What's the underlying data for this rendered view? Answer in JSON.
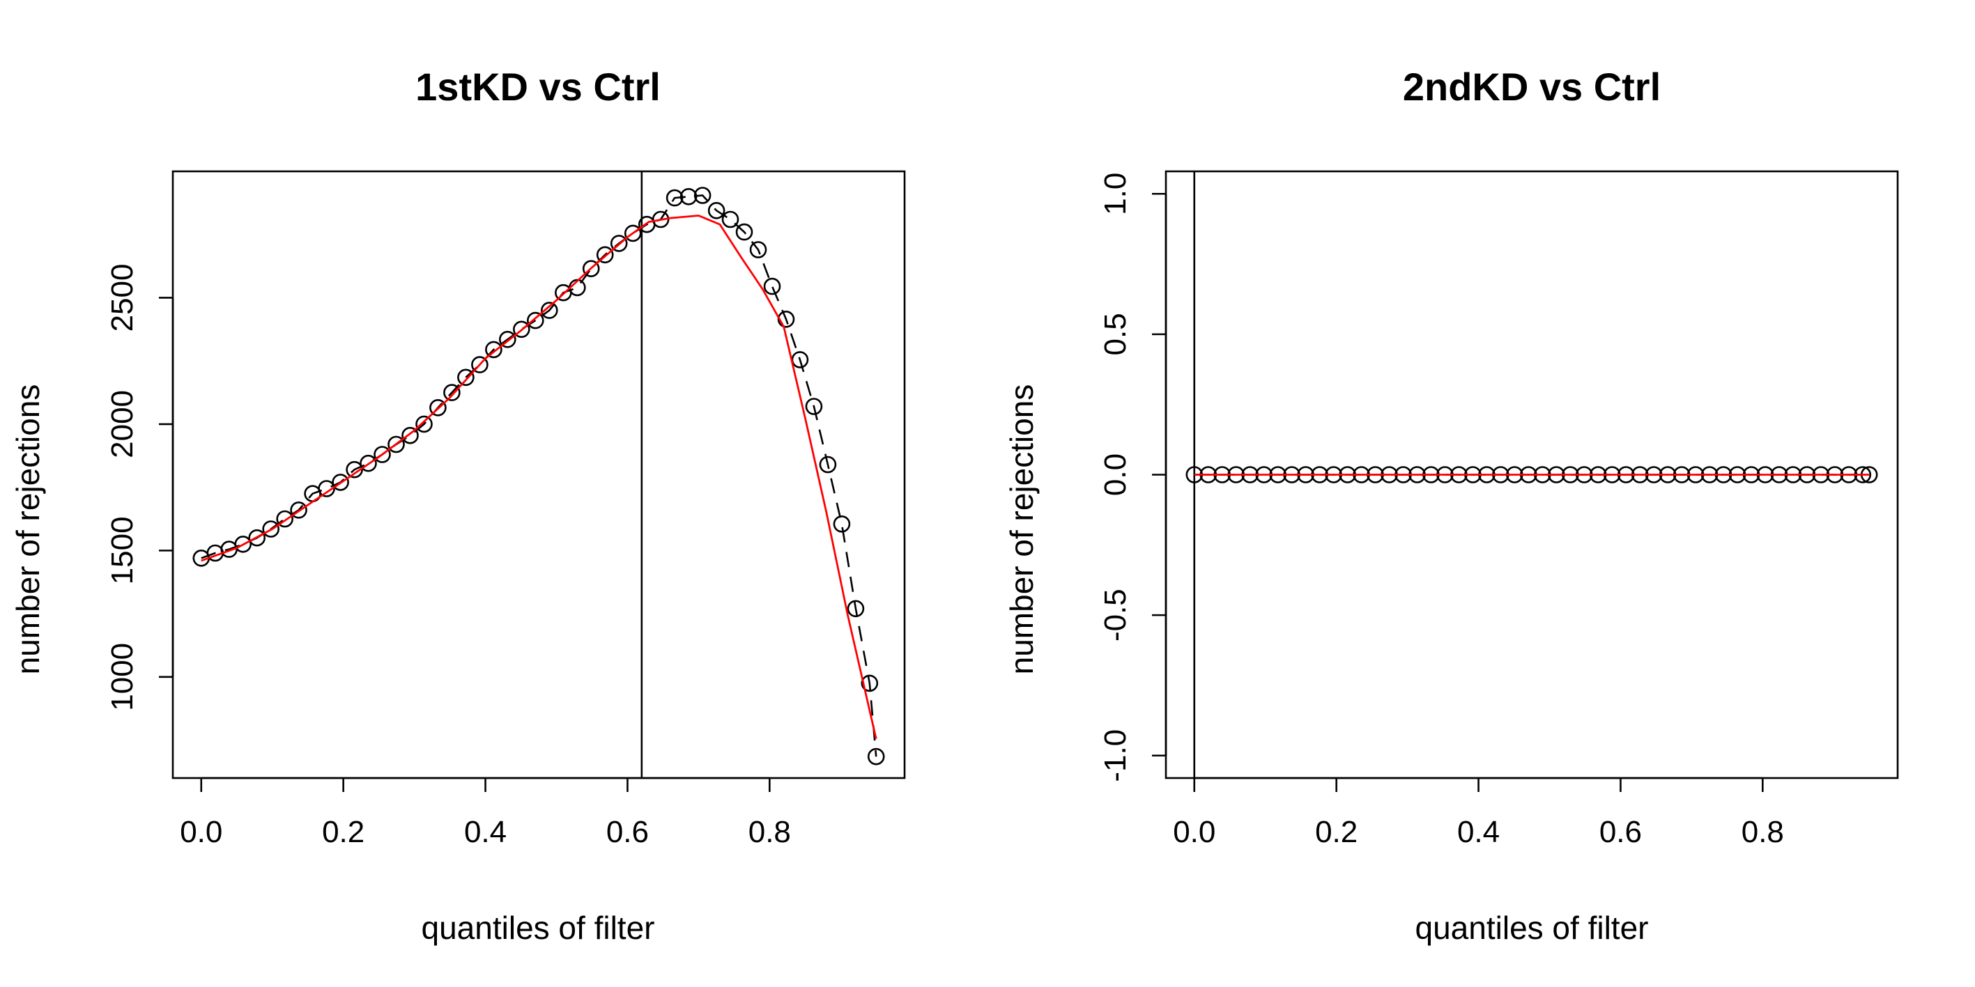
{
  "chart_data": [
    {
      "type": "scatter",
      "title": "1stKD vs Ctrl",
      "xlabel": "quantiles of filter",
      "ylabel": "number of rejections",
      "xlim": [
        -0.04,
        0.99
      ],
      "ylim": [
        600,
        3000
      ],
      "xticks": [
        0.0,
        0.2,
        0.4,
        0.6,
        0.8
      ],
      "xtick_labels": [
        "0.0",
        "0.2",
        "0.4",
        "0.6",
        "0.8"
      ],
      "yticks": [
        1000,
        1500,
        2000,
        2500
      ],
      "ytick_labels": [
        "1000",
        "1500",
        "2000",
        "2500"
      ],
      "vline": 0.62,
      "colors": {
        "points": "#000000",
        "dashed": "#000000",
        "fit": "#ff0000"
      },
      "series": [
        {
          "style": "points-dashed",
          "x": [
            0.0,
            0.0196,
            0.0392,
            0.0588,
            0.0784,
            0.098,
            0.1176,
            0.1372,
            0.1568,
            0.1764,
            0.196,
            0.2156,
            0.2352,
            0.2548,
            0.2744,
            0.294,
            0.3136,
            0.3332,
            0.3528,
            0.3724,
            0.392,
            0.4116,
            0.4312,
            0.4508,
            0.4704,
            0.49,
            0.5096,
            0.5292,
            0.5488,
            0.5684,
            0.588,
            0.6076,
            0.6272,
            0.6468,
            0.6664,
            0.686,
            0.7056,
            0.7252,
            0.7448,
            0.7644,
            0.784,
            0.8036,
            0.8232,
            0.8428,
            0.8624,
            0.882,
            0.9016,
            0.9212,
            0.9408,
            0.95
          ],
          "values": [
            1470,
            1490,
            1505,
            1525,
            1550,
            1585,
            1625,
            1660,
            1725,
            1745,
            1770,
            1820,
            1845,
            1880,
            1920,
            1955,
            2000,
            2065,
            2125,
            2185,
            2235,
            2295,
            2335,
            2375,
            2410,
            2450,
            2520,
            2540,
            2615,
            2670,
            2715,
            2755,
            2790,
            2810,
            2895,
            2900,
            2905,
            2845,
            2810,
            2760,
            2690,
            2545,
            2415,
            2255,
            2070,
            1840,
            1605,
            1270,
            975,
            685
          ]
        },
        {
          "style": "fit-line",
          "x": [
            0.0,
            0.05,
            0.1,
            0.15,
            0.2,
            0.25,
            0.3,
            0.35,
            0.4,
            0.45,
            0.5,
            0.55,
            0.6,
            0.63,
            0.66,
            0.7,
            0.73,
            0.76,
            0.79,
            0.82,
            0.85,
            0.88,
            0.91,
            0.95
          ],
          "values": [
            1460,
            1510,
            1585,
            1680,
            1775,
            1870,
            1975,
            2105,
            2260,
            2370,
            2490,
            2620,
            2740,
            2800,
            2815,
            2825,
            2790,
            2660,
            2535,
            2385,
            2025,
            1650,
            1245,
            755
          ]
        }
      ]
    },
    {
      "type": "scatter",
      "title": "2ndKD vs Ctrl",
      "xlabel": "quantiles of filter",
      "ylabel": "number of rejections",
      "xlim": [
        -0.04,
        0.99
      ],
      "ylim": [
        -1.08,
        1.08
      ],
      "xticks": [
        0.0,
        0.2,
        0.4,
        0.6,
        0.8
      ],
      "xtick_labels": [
        "0.0",
        "0.2",
        "0.4",
        "0.6",
        "0.8"
      ],
      "yticks": [
        -1.0,
        -0.5,
        0.0,
        0.5,
        1.0
      ],
      "ytick_labels": [
        "-1.0",
        "-0.5",
        "0.0",
        "0.5",
        "1.0"
      ],
      "vline": 0.0,
      "colors": {
        "points": "#000000",
        "dashed": "#000000",
        "fit": "#ff0000"
      },
      "series": [
        {
          "style": "points-dashed",
          "x": [
            0.0,
            0.0196,
            0.0392,
            0.0588,
            0.0784,
            0.098,
            0.1176,
            0.1372,
            0.1568,
            0.1764,
            0.196,
            0.2156,
            0.2352,
            0.2548,
            0.2744,
            0.294,
            0.3136,
            0.3332,
            0.3528,
            0.3724,
            0.392,
            0.4116,
            0.4312,
            0.4508,
            0.4704,
            0.49,
            0.5096,
            0.5292,
            0.5488,
            0.5684,
            0.588,
            0.6076,
            0.6272,
            0.6468,
            0.6664,
            0.686,
            0.7056,
            0.7252,
            0.7448,
            0.7644,
            0.784,
            0.8036,
            0.8232,
            0.8428,
            0.8624,
            0.882,
            0.9016,
            0.9212,
            0.9408,
            0.95
          ],
          "values": [
            0,
            0,
            0,
            0,
            0,
            0,
            0,
            0,
            0,
            0,
            0,
            0,
            0,
            0,
            0,
            0,
            0,
            0,
            0,
            0,
            0,
            0,
            0,
            0,
            0,
            0,
            0,
            0,
            0,
            0,
            0,
            0,
            0,
            0,
            0,
            0,
            0,
            0,
            0,
            0,
            0,
            0,
            0,
            0,
            0,
            0,
            0,
            0,
            0,
            0
          ]
        },
        {
          "style": "fit-line",
          "x": [
            0.0,
            0.95
          ],
          "values": [
            0,
            0
          ]
        }
      ]
    }
  ]
}
